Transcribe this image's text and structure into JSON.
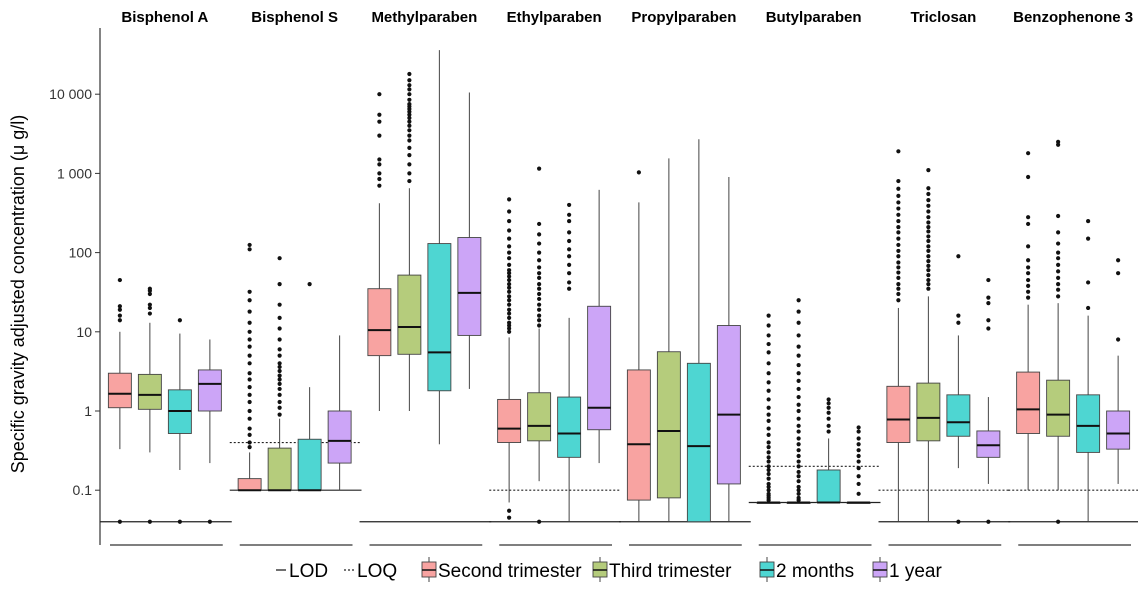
{
  "chart_data": {
    "type": "boxplot",
    "ylabel": "Specific gravity adjusted concentration (μ g/l)",
    "y_scale": "log10",
    "ylim": [
      0.02,
      60000
    ],
    "y_ticks": [
      0.1,
      1,
      10,
      100,
      1000,
      10000
    ],
    "y_tick_labels": [
      "0.1",
      "1",
      "10",
      "100",
      "1 000",
      "10 000"
    ],
    "grid": false,
    "legend": {
      "position": "bottom",
      "items": [
        {
          "label": "LOD",
          "kind": "solid-line"
        },
        {
          "label": "LOQ",
          "kind": "dotted-line"
        },
        {
          "label": "Second trimester",
          "color": "#F8A3A1"
        },
        {
          "label": "Third trimester",
          "color": "#B5CC7C"
        },
        {
          "label": "2 months",
          "color": "#4ED6D2"
        },
        {
          "label": "1 year",
          "color": "#CCA5F7"
        }
      ]
    },
    "series_names": [
      "Second trimester",
      "Third trimester",
      "2 months",
      "1 year"
    ],
    "panels": [
      {
        "title": "Bisphenol A",
        "lod": 0.04,
        "loq": null,
        "boxes": [
          {
            "q1": 1.1,
            "median": 1.65,
            "q3": 3.0,
            "whisker_low": 0.33,
            "whisker_high": 10,
            "outliers": [
              0.04,
              14,
              16,
              19,
              21,
              45
            ]
          },
          {
            "q1": 1.05,
            "median": 1.6,
            "q3": 2.9,
            "whisker_low": 0.3,
            "whisker_high": 13,
            "outliers": [
              0.04,
              17,
              20,
              22,
              30,
              33,
              35
            ]
          },
          {
            "q1": 0.52,
            "median": 1.0,
            "q3": 1.85,
            "whisker_low": 0.18,
            "whisker_high": 9.5,
            "outliers": [
              0.04,
              14
            ]
          },
          {
            "q1": 1.0,
            "median": 2.2,
            "q3": 3.3,
            "whisker_low": 0.22,
            "whisker_high": 8,
            "outliers": [
              0.04
            ]
          }
        ]
      },
      {
        "title": "Bisphenol S",
        "lod": 0.1,
        "loq": 0.4,
        "boxes": [
          {
            "q1": 0.1,
            "median": 0.1,
            "q3": 0.14,
            "whisker_low": 0.1,
            "whisker_high": 0.3,
            "outliers": [
              0.35,
              0.4,
              0.5,
              0.6,
              0.8,
              1.0,
              1.3,
              1.6,
              2.0,
              2.5,
              3.0,
              4.0,
              5.0,
              6.5,
              8,
              10,
              13,
              18,
              25,
              32,
              110,
              125
            ]
          },
          {
            "q1": 0.1,
            "median": 0.1,
            "q3": 0.34,
            "whisker_low": 0.1,
            "whisker_high": 0.8,
            "outliers": [
              0.9,
              1.1,
              1.3,
              1.6,
              1.9,
              2.2,
              2.5,
              2.8,
              3.2,
              3.6,
              4.0,
              5.0,
              6.0,
              8.0,
              11,
              15,
              22,
              40,
              85
            ]
          },
          {
            "q1": 0.1,
            "median": 0.1,
            "q3": 0.44,
            "whisker_low": 0.1,
            "whisker_high": 2.0,
            "outliers": [
              40
            ]
          },
          {
            "q1": 0.22,
            "median": 0.42,
            "q3": 1.0,
            "whisker_low": 0.1,
            "whisker_high": 9,
            "outliers": []
          }
        ]
      },
      {
        "title": "Methylparaben",
        "lod": 0.04,
        "loq": null,
        "boxes": [
          {
            "q1": 5.0,
            "median": 10.5,
            "q3": 35,
            "whisker_low": 1.0,
            "whisker_high": 420,
            "outliers": [
              700,
              850,
              1000,
              1300,
              1500,
              3000,
              4500,
              5500,
              10000
            ]
          },
          {
            "q1": 5.2,
            "median": 11.5,
            "q3": 52,
            "whisker_low": 1.0,
            "whisker_high": 650,
            "outliers": [
              800,
              1000,
              1300,
              1700,
              2100,
              2600,
              3000,
              3500,
              4000,
              4500,
              5000,
              5500,
              6000,
              6500,
              7000,
              7500,
              8500,
              10000,
              11500,
              13000,
              15000,
              18000
            ]
          },
          {
            "q1": 1.8,
            "median": 5.5,
            "q3": 130,
            "whisker_low": 0.38,
            "whisker_high": 36000,
            "outliers": []
          },
          {
            "q1": 9.0,
            "median": 31,
            "q3": 155,
            "whisker_low": 1.9,
            "whisker_high": 10500,
            "outliers": []
          }
        ]
      },
      {
        "title": "Ethylparaben",
        "lod": 0.04,
        "loq": 0.1,
        "boxes": [
          {
            "q1": 0.4,
            "median": 0.6,
            "q3": 1.4,
            "whisker_low": 0.07,
            "whisker_high": 8.5,
            "outliers": [
              0.045,
              0.055,
              10,
              11,
              12,
              13,
              15,
              17,
              19,
              22,
              25,
              28,
              32,
              36,
              40,
              45,
              50,
              55,
              60,
              70,
              85,
              100,
              120,
              150,
              190,
              250,
              330,
              470
            ]
          },
          {
            "q1": 0.42,
            "median": 0.65,
            "q3": 1.7,
            "whisker_low": 0.13,
            "whisker_high": 11,
            "outliers": [
              0.04,
              12,
              14,
              16,
              19,
              22,
              26,
              30,
              35,
              40,
              48,
              55,
              65,
              80,
              100,
              130,
              170,
              230,
              1150
            ]
          },
          {
            "q1": 0.26,
            "median": 0.52,
            "q3": 1.5,
            "whisker_low": 0.04,
            "whisker_high": 15,
            "outliers": [
              35,
              42,
              55,
              70,
              90,
              110,
              140,
              180,
              250,
              300,
              400
            ]
          },
          {
            "q1": 0.58,
            "median": 1.1,
            "q3": 21,
            "whisker_low": 0.22,
            "whisker_high": 620,
            "outliers": []
          }
        ]
      },
      {
        "title": "Propylparaben",
        "lod": 0.04,
        "loq": null,
        "boxes": [
          {
            "q1": 0.075,
            "median": 0.38,
            "q3": 3.3,
            "whisker_low": 0.04,
            "whisker_high": 430,
            "outliers": [
              1030
            ]
          },
          {
            "q1": 0.08,
            "median": 0.56,
            "q3": 5.6,
            "whisker_low": 0.04,
            "whisker_high": 1550,
            "outliers": []
          },
          {
            "q1": 0.04,
            "median": 0.36,
            "q3": 4.0,
            "whisker_low": 0.04,
            "whisker_high": 2700,
            "outliers": []
          },
          {
            "q1": 0.12,
            "median": 0.9,
            "q3": 12,
            "whisker_low": 0.04,
            "whisker_high": 900,
            "outliers": []
          }
        ]
      },
      {
        "title": "Butylparaben",
        "lod": 0.07,
        "loq": 0.2,
        "boxes": [
          {
            "q1": 0.07,
            "median": 0.07,
            "q3": 0.07,
            "whisker_low": 0.07,
            "whisker_high": 0.07,
            "outliers": [
              0.075,
              0.08,
              0.085,
              0.09,
              0.1,
              0.11,
              0.12,
              0.14,
              0.16,
              0.18,
              0.2,
              0.23,
              0.26,
              0.3,
              0.35,
              0.4,
              0.5,
              0.6,
              0.75,
              0.9,
              1.1,
              1.4,
              1.8,
              2.3,
              3.0,
              4.0,
              5.5,
              7,
              9,
              12,
              16
            ]
          },
          {
            "q1": 0.07,
            "median": 0.07,
            "q3": 0.07,
            "whisker_low": 0.07,
            "whisker_high": 0.07,
            "outliers": [
              0.075,
              0.08,
              0.09,
              0.1,
              0.11,
              0.13,
              0.15,
              0.17,
              0.2,
              0.23,
              0.27,
              0.32,
              0.38,
              0.45,
              0.55,
              0.65,
              0.8,
              1.0,
              1.2,
              1.5,
              1.9,
              2.4,
              3.0,
              3.8,
              5.0,
              6.5,
              9,
              13,
              18,
              25
            ]
          },
          {
            "q1": 0.07,
            "median": 0.07,
            "q3": 0.18,
            "whisker_low": 0.07,
            "whisker_high": 0.45,
            "outliers": [
              0.55,
              0.65,
              0.8,
              0.95,
              1.1,
              1.25,
              1.4
            ]
          },
          {
            "q1": 0.07,
            "median": 0.07,
            "q3": 0.07,
            "whisker_low": 0.07,
            "whisker_high": 0.07,
            "outliers": [
              0.09,
              0.12,
              0.15,
              0.19,
              0.23,
              0.27,
              0.32,
              0.38,
              0.45,
              0.55,
              0.62
            ]
          }
        ]
      },
      {
        "title": "Triclosan",
        "lod": 0.04,
        "loq": 0.1,
        "boxes": [
          {
            "q1": 0.4,
            "median": 0.78,
            "q3": 2.05,
            "whisker_low": 0.04,
            "whisker_high": 20,
            "outliers": [
              25,
              30,
              35,
              40,
              48,
              56,
              65,
              75,
              90,
              105,
              125,
              150,
              180,
              210,
              250,
              300,
              360,
              430,
              520,
              640,
              800,
              1900
            ]
          },
          {
            "q1": 0.42,
            "median": 0.82,
            "q3": 2.25,
            "whisker_low": 0.04,
            "whisker_high": 28,
            "outliers": [
              35,
              40,
              45,
              52,
              60,
              68,
              78,
              90,
              105,
              120,
              140,
              160,
              185,
              210,
              240,
              280,
              330,
              390,
              460,
              550,
              650,
              1100
            ]
          },
          {
            "q1": 0.48,
            "median": 0.72,
            "q3": 1.6,
            "whisker_low": 0.19,
            "whisker_high": 9,
            "outliers": [
              0.04,
              13,
              16,
              90
            ]
          },
          {
            "q1": 0.26,
            "median": 0.37,
            "q3": 0.56,
            "whisker_low": 0.12,
            "whisker_high": 1.5,
            "outliers": [
              0.04,
              11,
              14,
              23,
              27,
              45
            ]
          }
        ]
      },
      {
        "title": "Benzophenone 3",
        "lod": 0.04,
        "loq": 0.1,
        "boxes": [
          {
            "q1": 0.52,
            "median": 1.05,
            "q3": 3.1,
            "whisker_low": 0.1,
            "whisker_high": 22,
            "outliers": [
              27,
              32,
              38,
              45,
              55,
              65,
              80,
              120,
              230,
              280,
              900,
              1800
            ]
          },
          {
            "q1": 0.48,
            "median": 0.9,
            "q3": 2.45,
            "whisker_low": 0.1,
            "whisker_high": 23,
            "outliers": [
              0.04,
              28,
              34,
              40,
              48,
              58,
              70,
              85,
              100,
              130,
              180,
              290,
              2300,
              2500
            ]
          },
          {
            "q1": 0.3,
            "median": 0.65,
            "q3": 1.6,
            "whisker_low": 0.04,
            "whisker_high": 16,
            "outliers": [
              20,
              42,
              150,
              250
            ]
          },
          {
            "q1": 0.33,
            "median": 0.52,
            "q3": 1.0,
            "whisker_low": 0.12,
            "whisker_high": 5,
            "outliers": [
              8,
              55,
              80
            ]
          }
        ]
      }
    ]
  }
}
